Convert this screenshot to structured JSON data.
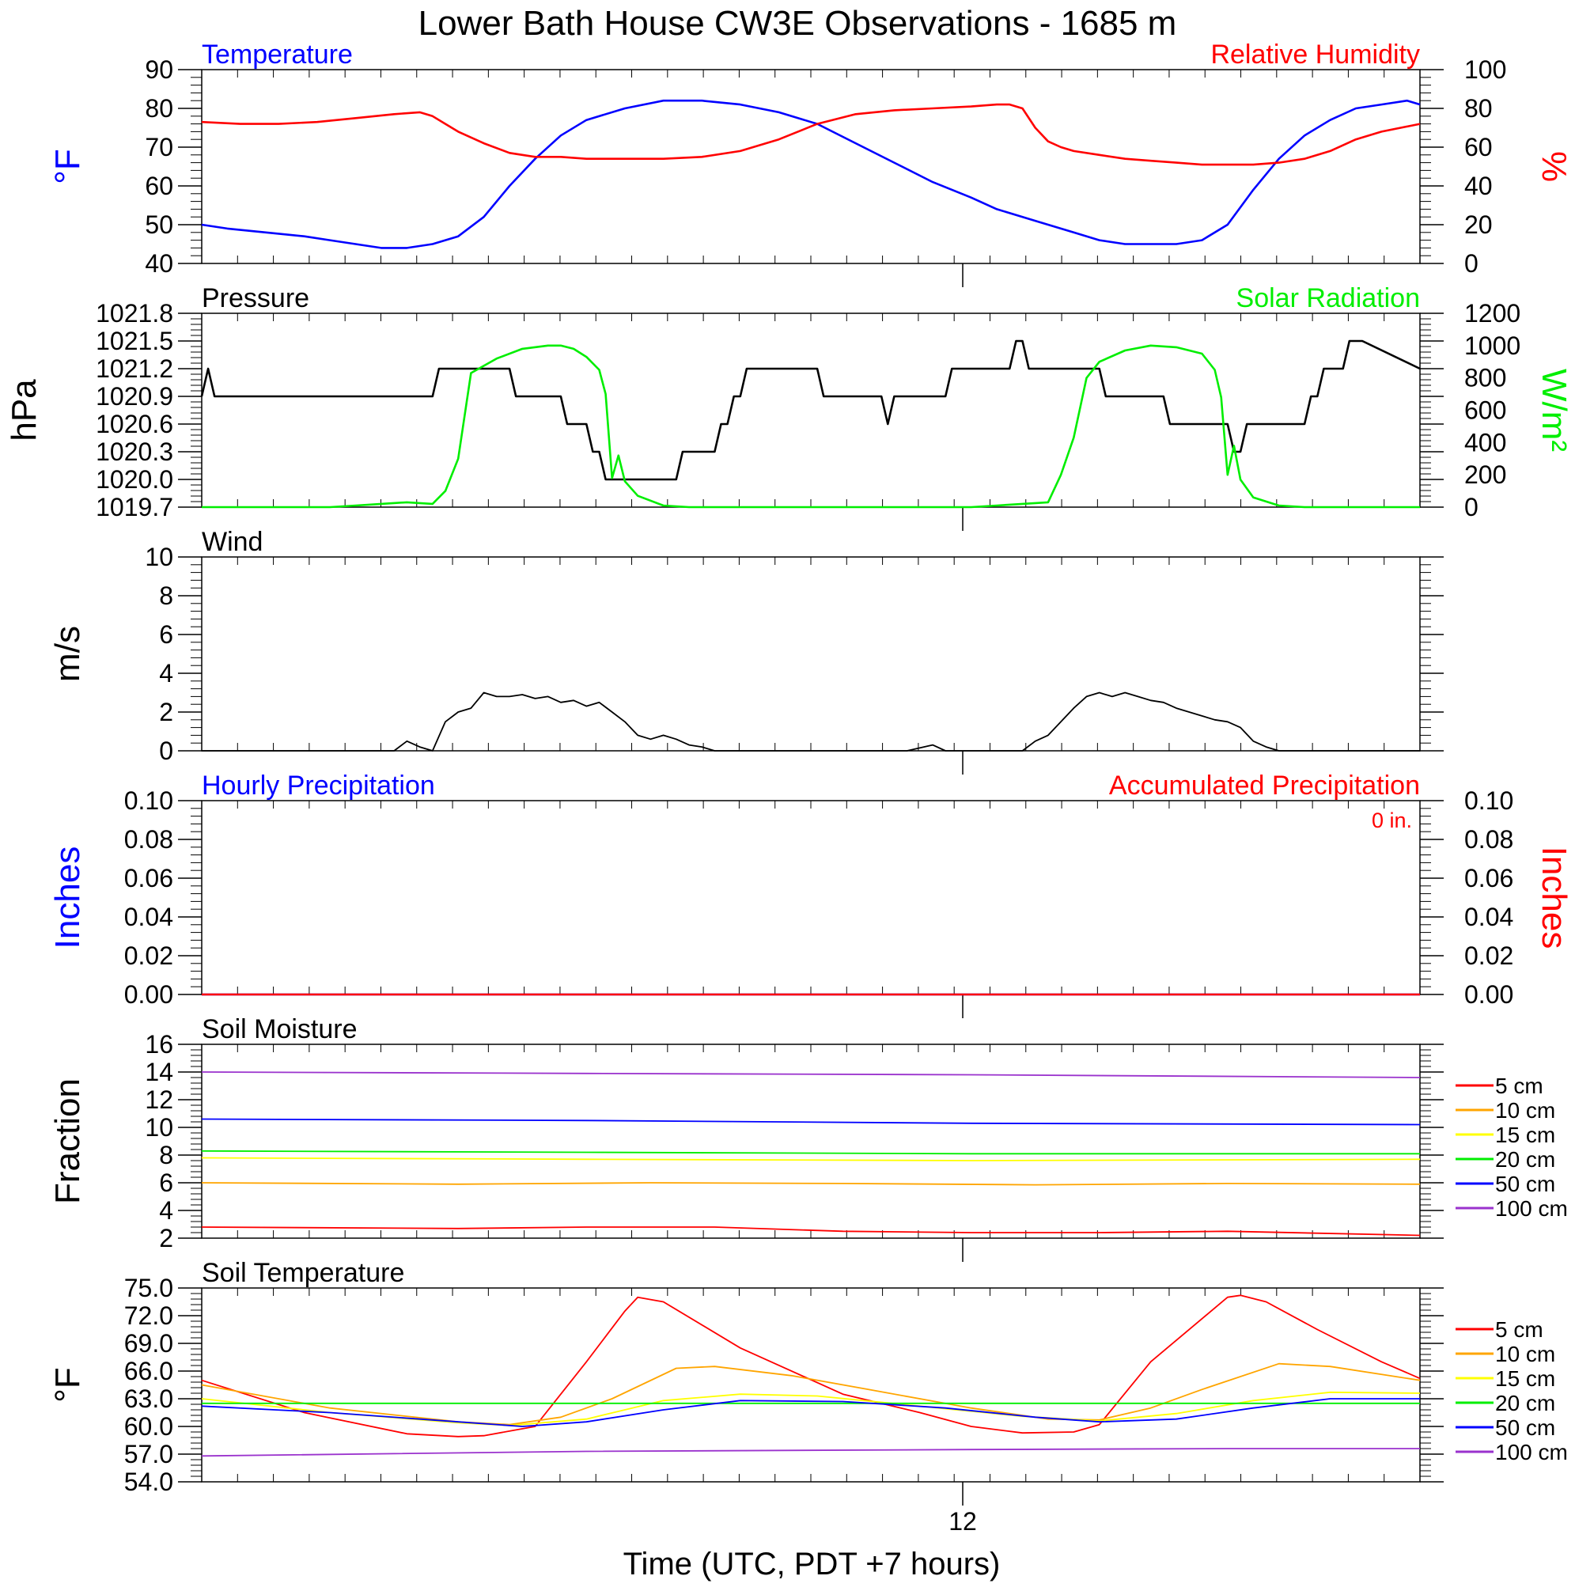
{
  "title": "Lower Bath House CW3E Observations - 1685 m",
  "x_axis": {
    "label": "Time (UTC, PDT +7 hours)",
    "tick_label": "12"
  },
  "colors": {
    "blue": "#0000ff",
    "red": "#ff0000",
    "green": "#00ee00",
    "black": "#000000",
    "orange": "#ffa500",
    "yellow": "#ffff00",
    "purple": "#9a32cd"
  },
  "chart_data": [
    {
      "type": "line",
      "title_left": "Temperature",
      "title_right": "Relative Humidity",
      "ylabel_left": "°F",
      "ylabel_right": "%",
      "ylim_left": [
        40,
        90
      ],
      "ylim_right": [
        0,
        100
      ],
      "yticks_left": [
        "40",
        "50",
        "60",
        "70",
        "80",
        "90"
      ],
      "yticks_right": [
        "0",
        "20",
        "40",
        "60",
        "80",
        "100"
      ],
      "series": [
        {
          "axis": "left",
          "color": "#0000ff",
          "x": [
            0,
            2,
            5,
            8,
            10,
            12,
            14,
            16,
            18,
            20,
            22,
            24,
            26,
            28,
            30,
            33,
            36,
            39,
            42,
            45,
            48,
            51,
            54,
            57,
            60,
            62,
            65,
            68,
            70,
            72,
            74,
            76,
            78,
            80,
            82,
            84,
            86,
            88,
            90,
            92,
            94,
            95
          ],
          "y": [
            50,
            49,
            48,
            47,
            46,
            45,
            44,
            44,
            45,
            47,
            52,
            60,
            67,
            73,
            77,
            80,
            82,
            82,
            81,
            79,
            76,
            71,
            66,
            61,
            57,
            54,
            51,
            48,
            46,
            45,
            45,
            45,
            46,
            50,
            59,
            67,
            73,
            77,
            80,
            81,
            82,
            81
          ]
        },
        {
          "axis": "right",
          "color": "#ff0000",
          "x": [
            0,
            3,
            6,
            9,
            12,
            15,
            17,
            18,
            19,
            20,
            22,
            24,
            26,
            28,
            30,
            33,
            36,
            39,
            42,
            45,
            48,
            51,
            54,
            57,
            60,
            62,
            63,
            64,
            65,
            66,
            67,
            68,
            70,
            72,
            74,
            76,
            78,
            80,
            82,
            84,
            86,
            88,
            90,
            92,
            95
          ],
          "y": [
            73,
            72,
            72,
            73,
            75,
            77,
            78,
            76,
            72,
            68,
            62,
            57,
            55,
            55,
            54,
            54,
            54,
            55,
            58,
            64,
            72,
            77,
            79,
            80,
            81,
            82,
            82,
            80,
            70,
            63,
            60,
            58,
            56,
            54,
            53,
            52,
            51,
            51,
            51,
            52,
            54,
            58,
            64,
            68,
            72
          ]
        }
      ]
    },
    {
      "type": "line",
      "title_left": "Pressure",
      "title_right": "Solar Radiation",
      "ylabel_left": "hPa",
      "ylabel_right": "W/m²",
      "ylim_left": [
        1019.7,
        1021.8
      ],
      "ylim_right": [
        0,
        1200
      ],
      "yticks_left": [
        "1019.7",
        "1020.0",
        "1020.3",
        "1020.6",
        "1020.9",
        "1021.2",
        "1021.5",
        "1021.8"
      ],
      "yticks_right": [
        "0",
        "200",
        "400",
        "600",
        "800",
        "1000",
        "1200"
      ],
      "series": [
        {
          "axis": "left",
          "color": "#000000",
          "x": [
            0,
            0.5,
            1,
            1.5,
            18,
            18.5,
            24,
            24.5,
            28,
            28.5,
            30,
            30.5,
            31,
            31.5,
            33,
            33.5,
            37,
            37.5,
            38,
            38.5,
            40,
            40.5,
            41,
            41.5,
            42,
            42.5,
            48,
            48.5,
            53,
            53.5,
            54,
            54.5,
            58,
            58.5,
            63,
            63.5,
            64,
            64.5,
            70,
            70.5,
            75,
            75.5,
            80,
            80.5,
            81,
            81.5,
            86,
            86.5,
            87,
            87.5,
            89,
            89.5,
            90,
            90.5,
            95
          ],
          "y": [
            1020.9,
            1021.2,
            1020.9,
            1020.9,
            1020.9,
            1021.2,
            1021.2,
            1020.9,
            1020.9,
            1020.6,
            1020.6,
            1020.3,
            1020.3,
            1020.0,
            1020.0,
            1020.0,
            1020.0,
            1020.3,
            1020.3,
            1020.3,
            1020.3,
            1020.6,
            1020.6,
            1020.9,
            1020.9,
            1021.2,
            1021.2,
            1020.9,
            1020.9,
            1020.6,
            1020.9,
            1020.9,
            1020.9,
            1021.2,
            1021.2,
            1021.5,
            1021.5,
            1021.2,
            1021.2,
            1020.9,
            1020.9,
            1020.6,
            1020.6,
            1020.3,
            1020.3,
            1020.6,
            1020.6,
            1020.9,
            1020.9,
            1021.2,
            1021.2,
            1021.5,
            1021.5,
            1021.5,
            1021.2
          ]
        },
        {
          "axis": "right",
          "color": "#00ee00",
          "x": [
            0,
            10,
            12,
            14,
            16,
            18,
            19,
            20,
            21,
            23,
            25,
            27,
            28,
            29,
            30,
            31,
            31.5,
            32,
            32.5,
            33,
            34,
            36,
            38,
            40,
            55,
            60,
            62,
            64,
            66,
            67,
            68,
            69,
            70,
            72,
            74,
            76,
            78,
            79,
            79.5,
            80,
            80.5,
            81,
            82,
            84,
            86,
            88,
            95
          ],
          "y": [
            0,
            0,
            10,
            20,
            30,
            20,
            100,
            300,
            830,
            920,
            980,
            1000,
            1000,
            980,
            930,
            850,
            700,
            180,
            320,
            160,
            70,
            10,
            0,
            0,
            0,
            0,
            10,
            20,
            30,
            200,
            430,
            800,
            900,
            970,
            1000,
            990,
            950,
            850,
            680,
            200,
            380,
            170,
            60,
            10,
            0,
            0,
            0
          ]
        }
      ]
    },
    {
      "type": "line",
      "title_left": "Wind",
      "ylabel_left": "m/s",
      "ylim_left": [
        0,
        10
      ],
      "yticks_left": [
        "0",
        "2",
        "4",
        "6",
        "8",
        "10"
      ],
      "series": [
        {
          "axis": "left",
          "color": "#000000",
          "x": [
            0,
            15,
            16,
            17,
            18,
            19,
            20,
            21,
            22,
            23,
            24,
            25,
            26,
            27,
            28,
            29,
            30,
            31,
            32,
            33,
            34,
            35,
            36,
            37,
            38,
            39,
            40,
            55,
            57,
            58,
            64,
            65,
            66,
            67,
            68,
            69,
            70,
            71,
            72,
            73,
            74,
            75,
            76,
            77,
            78,
            79,
            80,
            81,
            82,
            83,
            84,
            95
          ],
          "y": [
            0,
            0,
            0.5,
            0.2,
            0,
            1.5,
            2,
            2.2,
            3,
            2.8,
            2.8,
            2.9,
            2.7,
            2.8,
            2.5,
            2.6,
            2.3,
            2.5,
            2.0,
            1.5,
            0.8,
            0.6,
            0.8,
            0.6,
            0.3,
            0.2,
            0,
            0,
            0.3,
            0,
            0,
            0.5,
            0.8,
            1.5,
            2.2,
            2.8,
            3.0,
            2.8,
            3.0,
            2.8,
            2.6,
            2.5,
            2.2,
            2.0,
            1.8,
            1.6,
            1.5,
            1.2,
            0.5,
            0.2,
            0,
            0
          ]
        }
      ]
    },
    {
      "type": "line",
      "title_left": "Hourly Precipitation",
      "title_right": "Accumulated Precipitation",
      "annotation": "0 in.",
      "ylabel_left": "Inches",
      "ylabel_right": "Inches",
      "ylim_left": [
        0,
        0.1
      ],
      "ylim_right": [
        0,
        0.1
      ],
      "yticks_left": [
        "0.00",
        "0.02",
        "0.04",
        "0.06",
        "0.08",
        "0.10"
      ],
      "yticks_right": [
        "0.00",
        "0.02",
        "0.04",
        "0.06",
        "0.08",
        "0.10"
      ],
      "series": [
        {
          "axis": "left",
          "color": "#0000ff",
          "x": [
            0,
            95
          ],
          "y": [
            0,
            0
          ]
        },
        {
          "axis": "right",
          "color": "#ff0000",
          "x": [
            0,
            95
          ],
          "y": [
            0,
            0
          ]
        }
      ]
    },
    {
      "type": "line",
      "title_left": "Soil Moisture",
      "ylabel_left": "Fraction",
      "ylim_left": [
        2,
        16
      ],
      "yticks_left": [
        "2",
        "4",
        "6",
        "8",
        "10",
        "12",
        "14",
        "16"
      ],
      "legend": [
        "5 cm",
        "10 cm",
        "15 cm",
        "20 cm",
        "50 cm",
        "100 cm"
      ],
      "series": [
        {
          "name": "5 cm",
          "axis": "left",
          "color": "#ff0000",
          "x": [
            0,
            20,
            30,
            40,
            50,
            60,
            70,
            80,
            95
          ],
          "y": [
            2.8,
            2.7,
            2.8,
            2.8,
            2.5,
            2.4,
            2.4,
            2.5,
            2.2
          ]
        },
        {
          "name": "10 cm",
          "axis": "left",
          "color": "#ffa500",
          "x": [
            0,
            20,
            35,
            50,
            65,
            80,
            95
          ],
          "y": [
            6.0,
            5.9,
            6.0,
            5.95,
            5.85,
            5.95,
            5.9
          ]
        },
        {
          "name": "15 cm",
          "axis": "left",
          "color": "#ffff00",
          "x": [
            0,
            30,
            60,
            95
          ],
          "y": [
            7.8,
            7.7,
            7.6,
            7.7
          ]
        },
        {
          "name": "20 cm",
          "axis": "left",
          "color": "#00ee00",
          "x": [
            0,
            30,
            60,
            95
          ],
          "y": [
            8.3,
            8.2,
            8.1,
            8.1
          ]
        },
        {
          "name": "50 cm",
          "axis": "left",
          "color": "#0000ff",
          "x": [
            0,
            30,
            60,
            95
          ],
          "y": [
            10.6,
            10.5,
            10.3,
            10.2
          ]
        },
        {
          "name": "100 cm",
          "axis": "left",
          "color": "#9a32cd",
          "x": [
            0,
            30,
            60,
            95
          ],
          "y": [
            14.0,
            13.9,
            13.8,
            13.6
          ]
        }
      ]
    },
    {
      "type": "line",
      "title_left": "Soil Temperature",
      "ylabel_left": "°F",
      "ylim_left": [
        54,
        75
      ],
      "yticks_left": [
        "54.0",
        "57.0",
        "60.0",
        "63.0",
        "66.0",
        "69.0",
        "72.0",
        "75.0"
      ],
      "legend": [
        "5 cm",
        "10 cm",
        "15 cm",
        "20 cm",
        "50 cm",
        "100 cm"
      ],
      "series": [
        {
          "name": "5 cm",
          "axis": "left",
          "color": "#ff0000",
          "x": [
            0,
            8,
            16,
            20,
            22,
            26,
            30,
            33,
            34,
            36,
            42,
            50,
            56,
            60,
            64,
            68,
            70,
            74,
            80,
            81,
            83,
            87,
            92,
            95
          ],
          "y": [
            65,
            61.5,
            59.2,
            58.9,
            59.0,
            60,
            67,
            72.5,
            74,
            73.5,
            68.5,
            63.5,
            61.5,
            60,
            59.3,
            59.4,
            60.2,
            67,
            74,
            74.2,
            73.5,
            70.5,
            67,
            65.2
          ]
        },
        {
          "name": "10 cm",
          "axis": "left",
          "color": "#ffa500",
          "x": [
            0,
            10,
            20,
            24,
            28,
            32,
            37,
            40,
            46,
            52,
            60,
            66,
            70,
            74,
            78,
            84,
            88,
            95
          ],
          "y": [
            64.5,
            62,
            60.5,
            60.2,
            61,
            63,
            66.3,
            66.5,
            65.5,
            64,
            62,
            60.8,
            60.7,
            62,
            64,
            66.8,
            66.5,
            65
          ]
        },
        {
          "name": "15 cm",
          "axis": "left",
          "color": "#ffff00",
          "x": [
            0,
            10,
            20,
            24,
            30,
            36,
            42,
            48,
            56,
            64,
            70,
            76,
            82,
            88,
            95
          ],
          "y": [
            63,
            61.5,
            60.4,
            60.1,
            60.8,
            62.8,
            63.5,
            63.3,
            62.2,
            61.1,
            60.6,
            61.4,
            62.8,
            63.7,
            63.6
          ]
        },
        {
          "name": "20 cm",
          "axis": "left",
          "color": "#00ee00",
          "x": [
            0,
            95
          ],
          "y": [
            62.5,
            62.5
          ]
        },
        {
          "name": "50 cm",
          "axis": "left",
          "color": "#0000ff",
          "x": [
            0,
            10,
            20,
            25,
            30,
            36,
            42,
            50,
            58,
            65,
            70,
            76,
            82,
            88,
            95
          ],
          "y": [
            62.2,
            61.5,
            60.5,
            60.0,
            60.5,
            61.8,
            62.8,
            62.7,
            62.0,
            61.0,
            60.5,
            60.8,
            62.0,
            63.0,
            63.0
          ]
        },
        {
          "name": "100 cm",
          "axis": "left",
          "color": "#9a32cd",
          "x": [
            0,
            30,
            60,
            80,
            95
          ],
          "y": [
            56.8,
            57.3,
            57.5,
            57.6,
            57.6
          ]
        }
      ]
    }
  ]
}
